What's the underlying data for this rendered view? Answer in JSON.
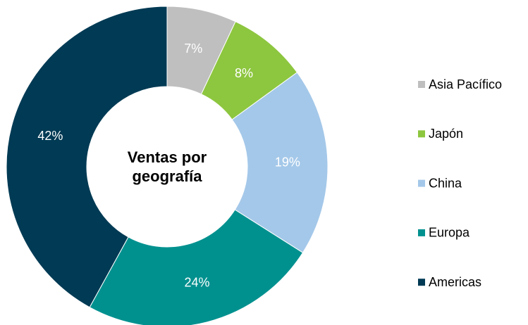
{
  "chart_data": {
    "type": "donut",
    "title": "Ventas por geografía",
    "categories": [
      "Asia Pacífico",
      "Japón",
      "China",
      "Europa",
      "Americas"
    ],
    "values": [
      7,
      8,
      19,
      24,
      42
    ],
    "value_labels": [
      "7%",
      "8%",
      "19%",
      "24%",
      "42%"
    ],
    "colors": [
      "#bfbfbf",
      "#8dc63f",
      "#a4c8e9",
      "#00918f",
      "#003a54"
    ],
    "legend": "right"
  }
}
